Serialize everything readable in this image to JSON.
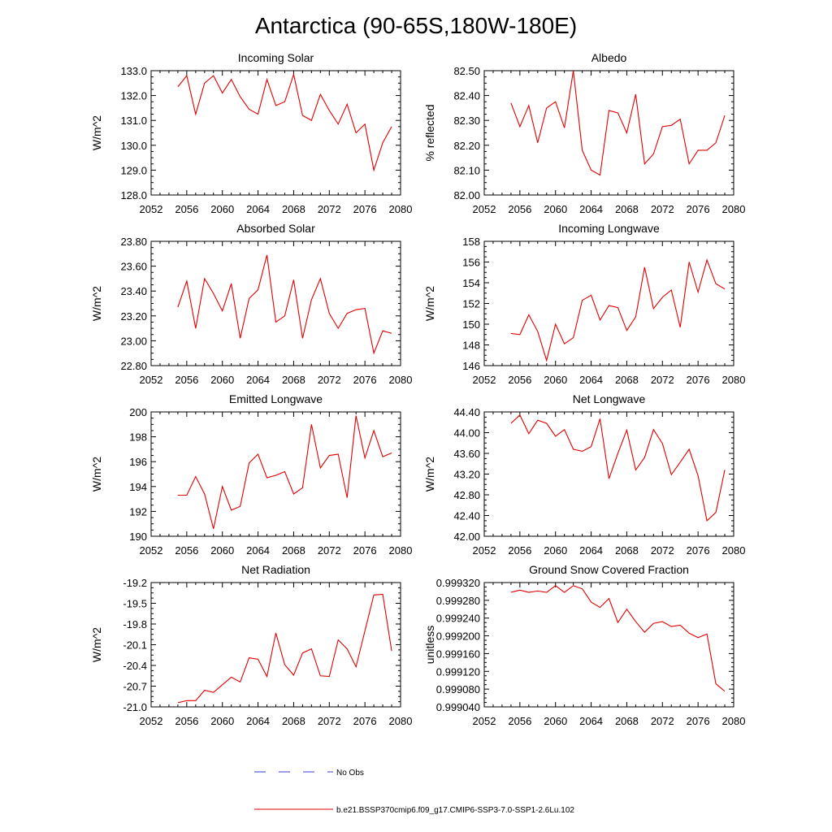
{
  "figure": {
    "title": "Antarctica (90-65S,180W-180E)",
    "line_color": "#e00000",
    "obs_color": "#3a3ad0",
    "legend": {
      "obs_label": "No Obs",
      "model_label": "b.e21.BSSP370cmip6.f09_g17.CMIP6-SSP3-7.0-SSP1-2.6Lu.102"
    }
  },
  "chart_data": [
    {
      "type": "line",
      "title": "Incoming Solar",
      "ylabel": "W/m^2",
      "xlim": [
        2052,
        2080
      ],
      "ylim": [
        128.0,
        133.0
      ],
      "xticks": [
        2052,
        2056,
        2060,
        2064,
        2068,
        2072,
        2076,
        2080
      ],
      "yticks": [
        128.0,
        129.0,
        130.0,
        131.0,
        132.0,
        133.0
      ],
      "ytick_labels": [
        "128.0",
        "129.0",
        "130.0",
        "131.0",
        "132.0",
        "133.0"
      ],
      "x": [
        2055,
        2056,
        2057,
        2058,
        2059,
        2060,
        2061,
        2062,
        2063,
        2064,
        2065,
        2066,
        2067,
        2068,
        2069,
        2070,
        2071,
        2072,
        2073,
        2074,
        2075,
        2076,
        2077,
        2078,
        2079
      ],
      "y": [
        132.35,
        132.8,
        131.25,
        132.5,
        132.8,
        132.1,
        132.65,
        131.95,
        131.45,
        131.25,
        132.65,
        131.6,
        131.75,
        132.85,
        131.2,
        131.0,
        132.05,
        131.4,
        130.85,
        131.65,
        130.5,
        130.85,
        129.0,
        130.1,
        130.75
      ]
    },
    {
      "type": "line",
      "title": "Albedo",
      "ylabel": "% reflected",
      "xlim": [
        2052,
        2080
      ],
      "ylim": [
        82.0,
        82.5
      ],
      "xticks": [
        2052,
        2056,
        2060,
        2064,
        2068,
        2072,
        2076,
        2080
      ],
      "yticks": [
        82.0,
        82.1,
        82.2,
        82.3,
        82.4,
        82.5
      ],
      "ytick_labels": [
        "82.00",
        "82.10",
        "82.20",
        "82.30",
        "82.40",
        "82.50"
      ],
      "x": [
        2055,
        2056,
        2057,
        2058,
        2059,
        2060,
        2061,
        2062,
        2063,
        2064,
        2065,
        2066,
        2067,
        2068,
        2069,
        2070,
        2071,
        2072,
        2073,
        2074,
        2075,
        2076,
        2077,
        2078,
        2079
      ],
      "y": [
        82.37,
        82.275,
        82.36,
        82.21,
        82.35,
        82.375,
        82.27,
        82.5,
        82.18,
        82.1,
        82.08,
        82.34,
        82.33,
        82.25,
        82.405,
        82.125,
        82.165,
        82.275,
        82.28,
        82.305,
        82.125,
        82.18,
        82.18,
        82.21,
        82.32
      ]
    },
    {
      "type": "line",
      "title": "Absorbed Solar",
      "ylabel": "W/m^2",
      "xlim": [
        2052,
        2080
      ],
      "ylim": [
        22.8,
        23.8
      ],
      "xticks": [
        2052,
        2056,
        2060,
        2064,
        2068,
        2072,
        2076,
        2080
      ],
      "yticks": [
        22.8,
        23.0,
        23.2,
        23.4,
        23.6,
        23.8
      ],
      "ytick_labels": [
        "22.80",
        "23.00",
        "23.20",
        "23.40",
        "23.60",
        "23.80"
      ],
      "x": [
        2055,
        2056,
        2057,
        2058,
        2059,
        2060,
        2061,
        2062,
        2063,
        2064,
        2065,
        2066,
        2067,
        2068,
        2069,
        2070,
        2071,
        2072,
        2073,
        2074,
        2075,
        2076,
        2077,
        2078,
        2079
      ],
      "y": [
        23.27,
        23.48,
        23.1,
        23.5,
        23.38,
        23.24,
        23.46,
        23.02,
        23.34,
        23.41,
        23.69,
        23.15,
        23.2,
        23.49,
        23.02,
        23.33,
        23.5,
        23.22,
        23.1,
        23.22,
        23.25,
        23.26,
        22.9,
        23.08,
        23.06
      ]
    },
    {
      "type": "line",
      "title": "Incoming Longwave",
      "ylabel": "W/m^2",
      "xlim": [
        2052,
        2080
      ],
      "ylim": [
        146,
        158
      ],
      "xticks": [
        2052,
        2056,
        2060,
        2064,
        2068,
        2072,
        2076,
        2080
      ],
      "yticks": [
        146,
        148,
        150,
        152,
        154,
        156,
        158
      ],
      "ytick_labels": [
        "146",
        "148",
        "150",
        "152",
        "154",
        "156",
        "158"
      ],
      "x": [
        2055,
        2056,
        2057,
        2058,
        2059,
        2060,
        2061,
        2062,
        2063,
        2064,
        2065,
        2066,
        2067,
        2068,
        2069,
        2070,
        2071,
        2072,
        2073,
        2074,
        2075,
        2076,
        2077,
        2078,
        2079
      ],
      "y": [
        149.1,
        149.0,
        150.9,
        149.3,
        146.5,
        150.0,
        148.1,
        148.7,
        152.3,
        152.8,
        150.4,
        151.8,
        151.6,
        149.4,
        150.7,
        155.5,
        151.5,
        152.6,
        153.3,
        149.7,
        156.0,
        153.1,
        156.2,
        153.9,
        153.4
      ]
    },
    {
      "type": "line",
      "title": "Emitted Longwave",
      "ylabel": "W/m^2",
      "xlim": [
        2052,
        2080
      ],
      "ylim": [
        190,
        200
      ],
      "xticks": [
        2052,
        2056,
        2060,
        2064,
        2068,
        2072,
        2076,
        2080
      ],
      "yticks": [
        190,
        192,
        194,
        196,
        198,
        200
      ],
      "ytick_labels": [
        "190",
        "192",
        "194",
        "196",
        "198",
        "200"
      ],
      "x": [
        2055,
        2056,
        2057,
        2058,
        2059,
        2060,
        2061,
        2062,
        2063,
        2064,
        2065,
        2066,
        2067,
        2068,
        2069,
        2070,
        2071,
        2072,
        2073,
        2074,
        2075,
        2076,
        2077,
        2078,
        2079
      ],
      "y": [
        193.3,
        193.3,
        194.8,
        193.4,
        190.6,
        194.0,
        192.1,
        192.4,
        195.9,
        196.6,
        194.7,
        194.9,
        195.2,
        193.4,
        193.9,
        199.0,
        195.5,
        196.5,
        196.6,
        193.1,
        199.7,
        196.3,
        198.5,
        196.4,
        196.7
      ]
    },
    {
      "type": "line",
      "title": "Net Longwave",
      "ylabel": "W/m^2",
      "xlim": [
        2052,
        2080
      ],
      "ylim": [
        42.0,
        44.4
      ],
      "xticks": [
        2052,
        2056,
        2060,
        2064,
        2068,
        2072,
        2076,
        2080
      ],
      "yticks": [
        42.0,
        42.4,
        42.8,
        43.2,
        43.6,
        44.0,
        44.4
      ],
      "ytick_labels": [
        "42.00",
        "42.40",
        "42.80",
        "43.20",
        "43.60",
        "44.00",
        "44.40"
      ],
      "x": [
        2055,
        2056,
        2057,
        2058,
        2059,
        2060,
        2061,
        2062,
        2063,
        2064,
        2065,
        2066,
        2067,
        2068,
        2069,
        2070,
        2071,
        2072,
        2073,
        2074,
        2075,
        2076,
        2077,
        2078,
        2079
      ],
      "y": [
        44.18,
        44.34,
        43.98,
        44.24,
        44.18,
        43.93,
        44.06,
        43.68,
        43.64,
        43.73,
        44.27,
        43.11,
        43.6,
        44.05,
        43.28,
        43.52,
        44.06,
        43.79,
        43.19,
        43.43,
        43.68,
        43.17,
        42.3,
        42.46,
        43.28
      ]
    },
    {
      "type": "line",
      "title": "Net Radiation",
      "ylabel": "W/m^2",
      "xlim": [
        2052,
        2080
      ],
      "ylim": [
        -21.0,
        -19.2
      ],
      "xticks": [
        2052,
        2056,
        2060,
        2064,
        2068,
        2072,
        2076,
        2080
      ],
      "yticks": [
        -21.0,
        -20.7,
        -20.4,
        -20.1,
        -19.8,
        -19.5,
        -19.2
      ],
      "ytick_labels": [
        "-21.0",
        "-20.7",
        "-20.4",
        "-20.1",
        "-19.8",
        "-19.5",
        "-19.2"
      ],
      "x": [
        2055,
        2056,
        2057,
        2058,
        2059,
        2060,
        2061,
        2062,
        2063,
        2064,
        2065,
        2066,
        2067,
        2068,
        2069,
        2070,
        2071,
        2072,
        2073,
        2074,
        2075,
        2076,
        2077,
        2078,
        2079
      ],
      "y": [
        -20.94,
        -20.91,
        -20.91,
        -20.76,
        -20.79,
        -20.68,
        -20.57,
        -20.64,
        -20.29,
        -20.31,
        -20.56,
        -19.93,
        -20.39,
        -20.54,
        -20.22,
        -20.16,
        -20.55,
        -20.56,
        -20.03,
        -20.16,
        -20.42,
        -19.9,
        -19.38,
        -19.37,
        -20.19
      ]
    },
    {
      "type": "line",
      "title": "Ground Snow Covered Fraction",
      "ylabel": "unitless",
      "xlim": [
        2052,
        2080
      ],
      "ylim": [
        0.99904,
        0.99932
      ],
      "xticks": [
        2052,
        2056,
        2060,
        2064,
        2068,
        2072,
        2076,
        2080
      ],
      "yticks": [
        0.99904,
        0.99908,
        0.99912,
        0.99916,
        0.9992,
        0.99924,
        0.99928,
        0.99932
      ],
      "ytick_labels": [
        "0.999040",
        "0.999080",
        "0.999120",
        "0.999160",
        "0.999200",
        "0.999240",
        "0.999280",
        "0.999320"
      ],
      "x": [
        2055,
        2056,
        2057,
        2058,
        2059,
        2060,
        2061,
        2062,
        2063,
        2064,
        2065,
        2066,
        2067,
        2068,
        2069,
        2070,
        2071,
        2072,
        2073,
        2074,
        2075,
        2076,
        2077,
        2078,
        2079
      ],
      "y": [
        0.999298,
        0.999303,
        0.999298,
        0.999301,
        0.999298,
        0.999313,
        0.999298,
        0.999313,
        0.999306,
        0.999276,
        0.999264,
        0.999284,
        0.99923,
        0.99926,
        0.999232,
        0.999208,
        0.999228,
        0.999232,
        0.999221,
        0.999224,
        0.999206,
        0.999196,
        0.999204,
        0.999092,
        0.999075
      ]
    }
  ]
}
